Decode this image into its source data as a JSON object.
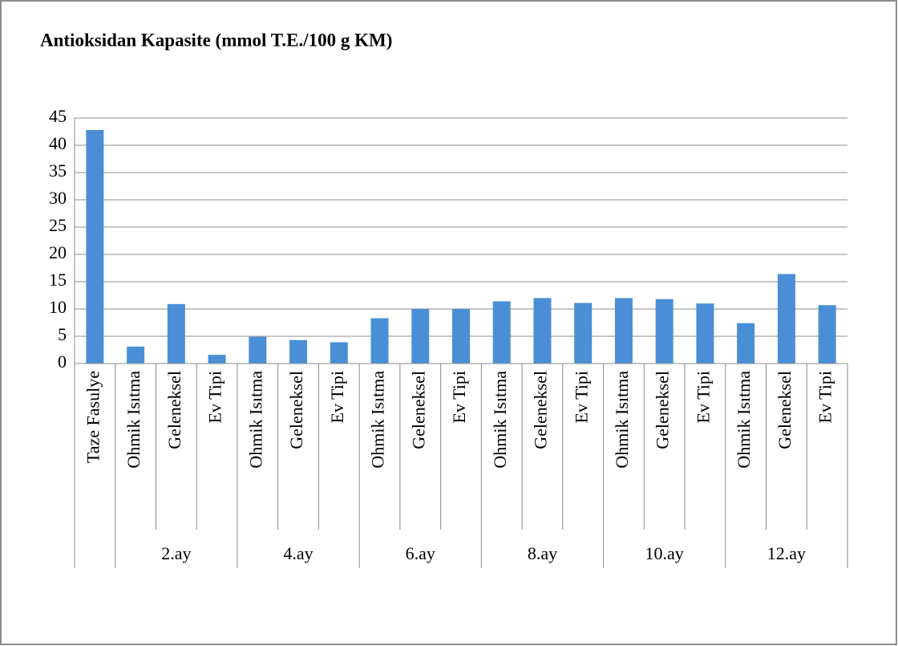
{
  "chart_data": {
    "type": "bar",
    "title": "Antioksidan Kapasite (mmol T.E./100 g KM)",
    "color": "#4a8fd6",
    "grid": true,
    "ylim": [
      0,
      45
    ],
    "yticks": [
      0,
      5,
      10,
      15,
      20,
      25,
      30,
      35,
      40,
      45
    ],
    "groups": [
      {
        "label": null,
        "categories": [
          "Taze Fasulye"
        ],
        "values": [
          42.8
        ]
      },
      {
        "label": "2.ay",
        "categories": [
          "Ohmik Isıtma",
          "Geleneksel",
          "Ev Tipi"
        ],
        "values": [
          3.1,
          10.9,
          1.6
        ]
      },
      {
        "label": "4.ay",
        "categories": [
          "Ohmik Isıtma",
          "Geleneksel",
          "Ev Tipi"
        ],
        "values": [
          4.9,
          4.3,
          3.9
        ]
      },
      {
        "label": "6.ay",
        "categories": [
          "Ohmik Isıtma",
          "Geleneksel",
          "Ev Tipi"
        ],
        "values": [
          8.3,
          10.0,
          10.0
        ]
      },
      {
        "label": "8.ay",
        "categories": [
          "Ohmik Isıtma",
          "Geleneksel",
          "Ev Tipi"
        ],
        "values": [
          11.4,
          12.0,
          11.1
        ]
      },
      {
        "label": "10.ay",
        "categories": [
          "Ohmik Isıtma",
          "Geleneksel",
          "Ev Tipi"
        ],
        "values": [
          12.0,
          11.8,
          11.0
        ]
      },
      {
        "label": "12.ay",
        "categories": [
          "Ohmik Isıtma",
          "Geleneksel",
          "Ev Tipi"
        ],
        "values": [
          7.4,
          16.4,
          10.7
        ]
      }
    ]
  }
}
